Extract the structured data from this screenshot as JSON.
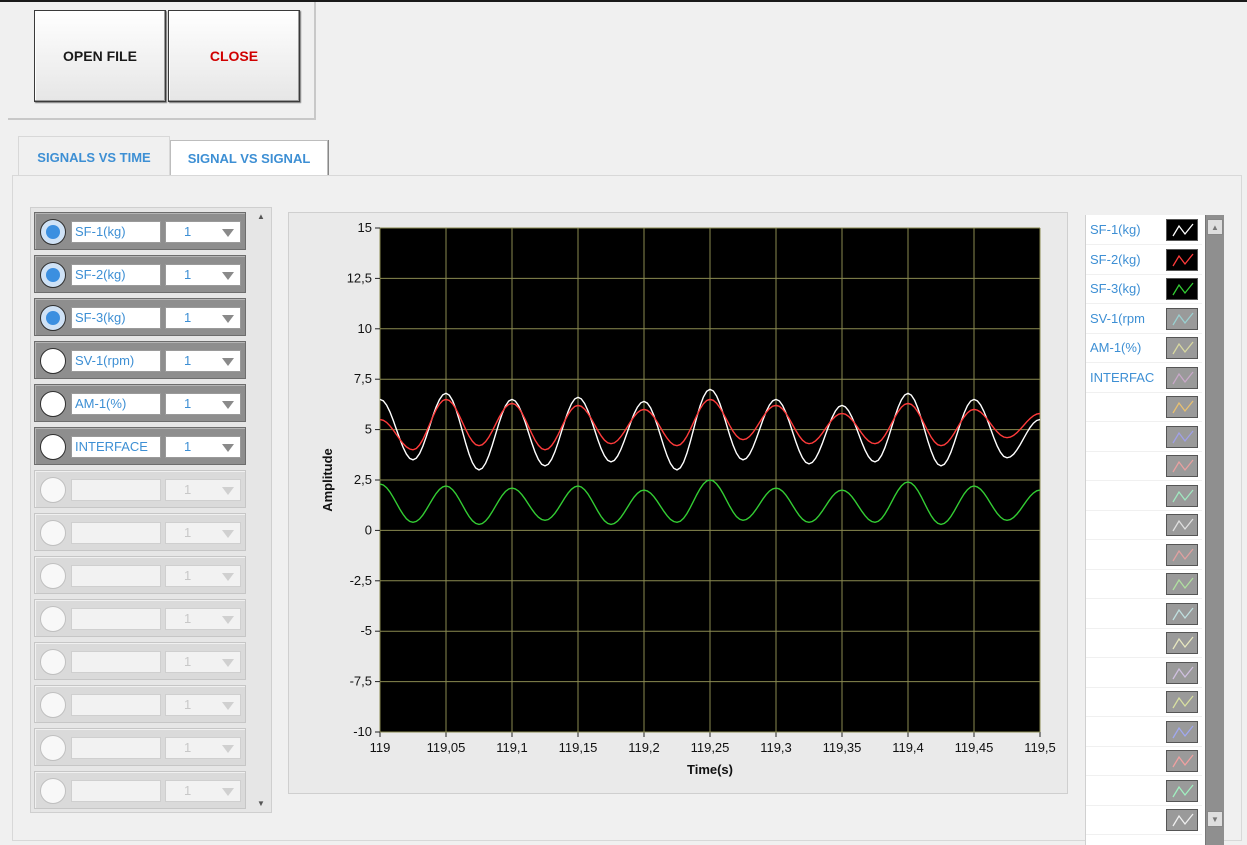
{
  "toolbar": {
    "open_label": "OPEN FILE",
    "close_label": "CLOSE"
  },
  "tabs": [
    {
      "label": "SIGNALS VS TIME",
      "active": true
    },
    {
      "label": "SIGNAL VS SIGNAL",
      "active": false
    }
  ],
  "channels": [
    {
      "name": "SF-1(kg)",
      "selected": true,
      "value": "1",
      "enabled": true
    },
    {
      "name": "SF-2(kg)",
      "selected": true,
      "value": "1",
      "enabled": true
    },
    {
      "name": "SF-3(kg)",
      "selected": true,
      "value": "1",
      "enabled": true
    },
    {
      "name": "SV-1(rpm)",
      "selected": false,
      "value": "1",
      "enabled": true
    },
    {
      "name": "AM-1(%)",
      "selected": false,
      "value": "1",
      "enabled": true
    },
    {
      "name": "INTERFACE",
      "selected": false,
      "value": "1",
      "enabled": true
    },
    {
      "name": "",
      "selected": false,
      "value": "1",
      "enabled": false
    },
    {
      "name": "",
      "selected": false,
      "value": "1",
      "enabled": false
    },
    {
      "name": "",
      "selected": false,
      "value": "1",
      "enabled": false
    },
    {
      "name": "",
      "selected": false,
      "value": "1",
      "enabled": false
    },
    {
      "name": "",
      "selected": false,
      "value": "1",
      "enabled": false
    },
    {
      "name": "",
      "selected": false,
      "value": "1",
      "enabled": false
    },
    {
      "name": "",
      "selected": false,
      "value": "1",
      "enabled": false
    },
    {
      "name": "",
      "selected": false,
      "value": "1",
      "enabled": false
    }
  ],
  "legend": [
    {
      "name": "SF-1(kg)",
      "color": "#ffffff",
      "bg": "#000000"
    },
    {
      "name": "SF-2(kg)",
      "color": "#ff3b3b",
      "bg": "#000000"
    },
    {
      "name": "SF-3(kg)",
      "color": "#33cc33",
      "bg": "#000000"
    },
    {
      "name": "SV-1(rpm",
      "color": "#9ad0d0",
      "bg": "#9a9a9a"
    },
    {
      "name": "AM-1(%)",
      "color": "#d8d8a0",
      "bg": "#9a9a9a"
    },
    {
      "name": "INTERFAC",
      "color": "#c8a8c8",
      "bg": "#9a9a9a"
    },
    {
      "name": "",
      "color": "#e8c070",
      "bg": "#9a9a9a"
    },
    {
      "name": "",
      "color": "#a0a0e8",
      "bg": "#9a9a9a"
    },
    {
      "name": "",
      "color": "#e8a0a0",
      "bg": "#9a9a9a"
    },
    {
      "name": "",
      "color": "#a0e8c0",
      "bg": "#9a9a9a"
    },
    {
      "name": "",
      "color": "#e0e0e0",
      "bg": "#9a9a9a"
    },
    {
      "name": "",
      "color": "#e0a0a0",
      "bg": "#9a9a9a"
    },
    {
      "name": "",
      "color": "#b0e0a0",
      "bg": "#9a9a9a"
    },
    {
      "name": "",
      "color": "#c0e0e0",
      "bg": "#9a9a9a"
    },
    {
      "name": "",
      "color": "#e8e8c0",
      "bg": "#9a9a9a"
    },
    {
      "name": "",
      "color": "#d0c0e0",
      "bg": "#9a9a9a"
    },
    {
      "name": "",
      "color": "#d8e0a0",
      "bg": "#9a9a9a"
    },
    {
      "name": "",
      "color": "#a0a8f0",
      "bg": "#9a9a9a"
    },
    {
      "name": "",
      "color": "#f0a0a0",
      "bg": "#9a9a9a"
    },
    {
      "name": "",
      "color": "#a0f0c0",
      "bg": "#9a9a9a"
    },
    {
      "name": "",
      "color": "#f0f0f0",
      "bg": "#9a9a9a"
    }
  ],
  "chart_data": {
    "type": "line",
    "xlabel": "Time(s)",
    "ylabel": "Amplitude",
    "xlim": [
      119,
      119.5
    ],
    "ylim": [
      -10,
      15
    ],
    "grid": true,
    "x_ticks": [
      "119",
      "119,05",
      "119,1",
      "119,15",
      "119,2",
      "119,25",
      "119,3",
      "119,35",
      "119,4",
      "119,45",
      "119,5"
    ],
    "y_ticks": [
      "15",
      "12,5",
      "10",
      "7,5",
      "5",
      "2,5",
      "0",
      "-2,5",
      "-5",
      "-7,5",
      "-10"
    ],
    "x": [
      119.0,
      119.025,
      119.05,
      119.075,
      119.1,
      119.125,
      119.15,
      119.175,
      119.2,
      119.225,
      119.25,
      119.275,
      119.3,
      119.325,
      119.35,
      119.375,
      119.4,
      119.425,
      119.45,
      119.475,
      119.5
    ],
    "series": [
      {
        "name": "SF-1(kg)",
        "color": "#ffffff",
        "values": [
          6.5,
          3.5,
          6.8,
          3.0,
          6.5,
          3.2,
          6.6,
          3.4,
          6.4,
          3.0,
          7.0,
          3.5,
          6.5,
          3.3,
          6.2,
          3.4,
          6.8,
          3.2,
          6.5,
          3.6,
          5.5
        ]
      },
      {
        "name": "SF-2(kg)",
        "color": "#ff3b3b",
        "values": [
          5.5,
          4.0,
          6.5,
          4.2,
          6.3,
          4.0,
          6.2,
          4.3,
          6.0,
          4.2,
          6.5,
          4.5,
          6.2,
          4.3,
          5.8,
          4.3,
          6.3,
          4.2,
          6.0,
          4.6,
          5.8
        ]
      },
      {
        "name": "SF-3(kg)",
        "color": "#33cc33",
        "values": [
          2.3,
          0.4,
          2.2,
          0.3,
          2.1,
          0.5,
          2.2,
          0.3,
          2.0,
          0.4,
          2.5,
          0.5,
          2.1,
          0.4,
          2.0,
          0.4,
          2.4,
          0.3,
          2.2,
          0.5,
          2.0
        ]
      }
    ]
  }
}
